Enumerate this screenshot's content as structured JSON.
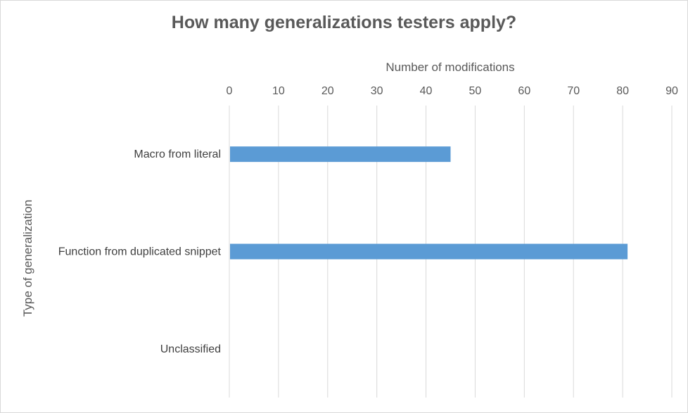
{
  "chart_data": {
    "type": "bar",
    "orientation": "horizontal",
    "title": "How many generalizations testers apply?",
    "xlabel": "Number of modifications",
    "ylabel": "Type of generalization",
    "categories": [
      "Macro from literal",
      "Function from duplicated snippet",
      "Unclassified"
    ],
    "values": [
      45,
      81,
      0
    ],
    "xlim": [
      0,
      90
    ],
    "xticks": [
      0,
      10,
      20,
      30,
      40,
      50,
      60,
      70,
      80,
      90
    ],
    "x_axis_position": "top",
    "grid": true,
    "legend": "none",
    "colors": {
      "bar": "#5b9bd5",
      "grid": "#d9d9d9",
      "text": "#595959"
    }
  }
}
